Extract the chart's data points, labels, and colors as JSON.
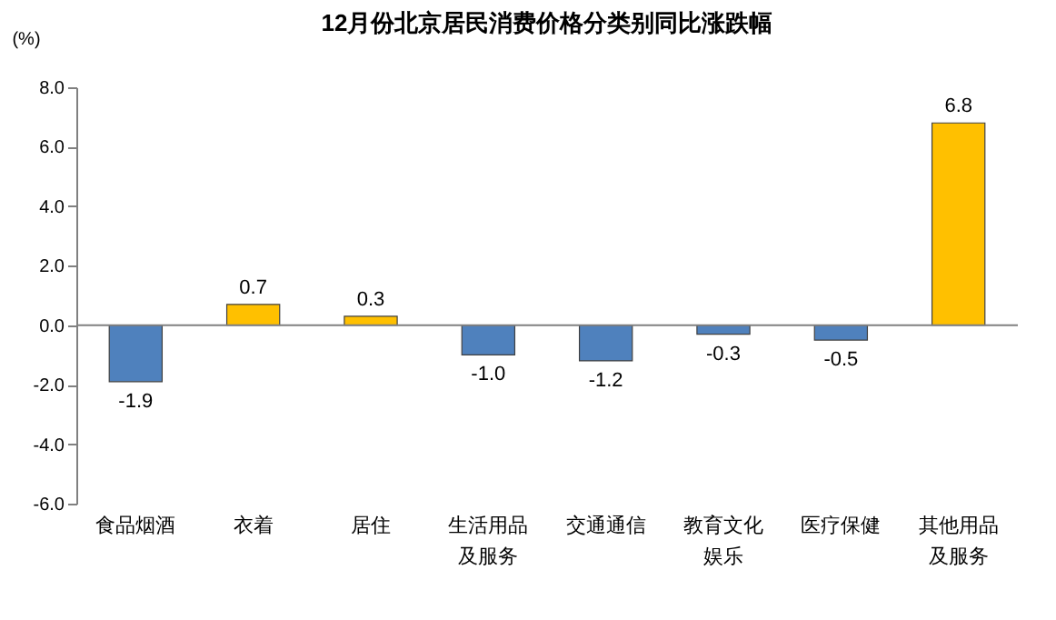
{
  "chart_data": {
    "type": "bar",
    "title": "12月份北京居民消费价格分类别同比涨跌幅",
    "ylabel": "(%)",
    "categories": [
      "食品烟酒",
      "衣着",
      "居住",
      "生活用品及服务",
      "交通通信",
      "教育文化娱乐",
      "医疗保健",
      "其他用品及服务"
    ],
    "values": [
      -1.9,
      0.7,
      0.3,
      -1.0,
      -1.2,
      -0.3,
      -0.5,
      6.8
    ],
    "colors": [
      "#4f81bd",
      "#ffc000",
      "#ffc000",
      "#4f81bd",
      "#4f81bd",
      "#4f81bd",
      "#4f81bd",
      "#ffc000"
    ],
    "ylim": [
      -6,
      8
    ],
    "yticks": [
      {
        "value": -6,
        "label": "-6.0"
      },
      {
        "value": -4,
        "label": "-4.0"
      },
      {
        "value": -2,
        "label": "-2.0"
      },
      {
        "value": 0,
        "label": "0.0"
      },
      {
        "value": 2,
        "label": "2.0"
      },
      {
        "value": 4,
        "label": "4.0"
      },
      {
        "value": 6,
        "label": "6.0"
      },
      {
        "value": 8,
        "label": "8.0"
      }
    ],
    "ref_lines": [
      {
        "axis": "y",
        "value": 0
      }
    ],
    "value_labels": [
      "-1.9",
      "0.7",
      "0.3",
      "-1.0",
      "-1.2",
      "-0.3",
      "-0.5",
      "6.8"
    ],
    "legend": false
  }
}
